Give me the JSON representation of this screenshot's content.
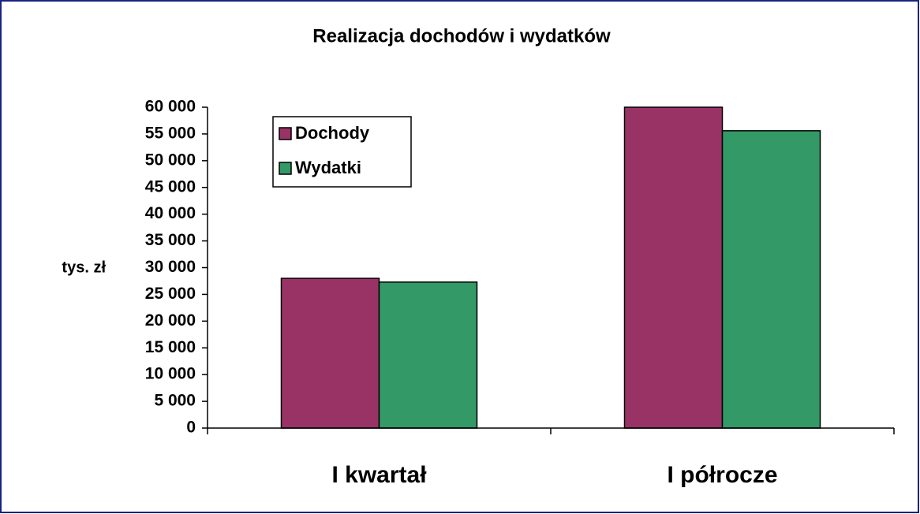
{
  "chart_data": {
    "type": "bar",
    "title": "Realizacja dochodów i wydatków",
    "ylabel": "tys. zł",
    "categories": [
      "I kwartał",
      "I półrocze"
    ],
    "series": [
      {
        "name": "Dochody",
        "color": "#993366",
        "values": [
          28000,
          60000
        ]
      },
      {
        "name": "Wydatki",
        "color": "#339966",
        "values": [
          27300,
          55600
        ]
      }
    ],
    "ylim": [
      0,
      60000
    ],
    "yticks": [
      0,
      {
        "value": 5000,
        "label": "5 000"
      },
      {
        "value": 10000,
        "label": "10 000"
      },
      {
        "value": 15000,
        "label": "15 000"
      },
      {
        "value": 20000,
        "label": "20 000"
      },
      {
        "value": 25000,
        "label": "25 000"
      },
      {
        "value": 30000,
        "label": "30 000"
      },
      {
        "value": 35000,
        "label": "35 000"
      },
      {
        "value": 40000,
        "label": "40 000"
      },
      {
        "value": 45000,
        "label": "45 000"
      },
      {
        "value": 50000,
        "label": "50 000"
      },
      {
        "value": 55000,
        "label": "55 000"
      },
      {
        "value": 60000,
        "label": "60 000"
      }
    ],
    "legend": "upper left",
    "grid": false
  }
}
